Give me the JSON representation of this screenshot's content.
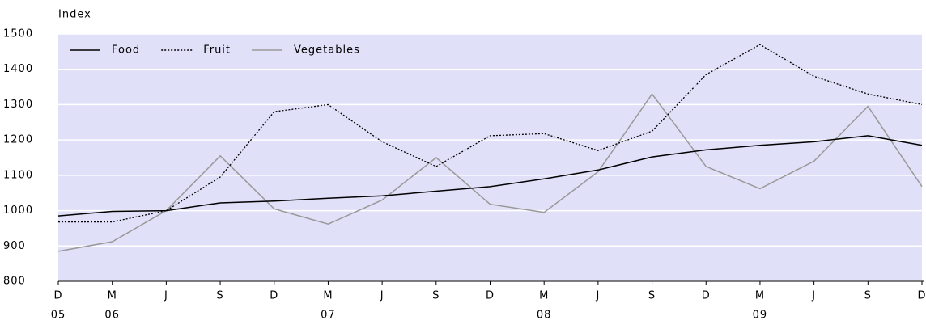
{
  "chart_data": {
    "type": "line",
    "y_label": "Index",
    "categories": [
      "D",
      "M",
      "J",
      "S",
      "D",
      "M",
      "J",
      "S",
      "D",
      "M",
      "J",
      "S",
      "D",
      "M",
      "J",
      "S",
      "D"
    ],
    "year_labels": [
      "05",
      "06",
      null,
      null,
      null,
      "07",
      null,
      null,
      null,
      "08",
      null,
      null,
      null,
      "09",
      null,
      null,
      null
    ],
    "series": [
      {
        "name": "Food",
        "color": "#000000",
        "style": "solid",
        "values": [
          985,
          998,
          1000,
          1022,
          1027,
          1035,
          1042,
          1055,
          1068,
          1090,
          1115,
          1152,
          1172,
          1185,
          1195,
          1212,
          1185
        ]
      },
      {
        "name": "Fruit",
        "color": "#000000",
        "style": "dotted",
        "values": [
          968,
          968,
          1000,
          1095,
          1280,
          1300,
          1195,
          1125,
          1212,
          1218,
          1170,
          1225,
          1385,
          1470,
          1380,
          1330,
          1300
        ]
      },
      {
        "name": "Vegetables",
        "color": "#999999",
        "style": "solid",
        "values": [
          885,
          912,
          1000,
          1155,
          1005,
          962,
          1030,
          1150,
          1018,
          995,
          1110,
          1330,
          1125,
          1062,
          1140,
          1295,
          1068
        ]
      }
    ],
    "ylim": [
      800,
      1500
    ],
    "yticks": [
      800,
      900,
      1000,
      1100,
      1200,
      1300,
      1400,
      1500
    ],
    "grid": true,
    "legend": "top-left"
  }
}
